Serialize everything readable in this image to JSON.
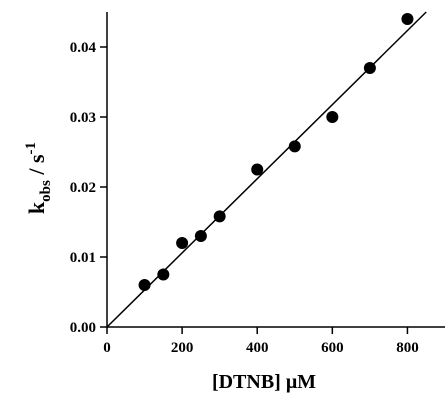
{
  "chart_data": {
    "type": "scatter",
    "xlabel": "[DTNB] μM",
    "ylabel": {
      "main": "k",
      "subscript": "obs",
      "unit": " / s",
      "superscript": "-1"
    },
    "xlim": [
      0,
      900
    ],
    "ylim": [
      0,
      0.045
    ],
    "x_ticks": [
      0,
      200,
      400,
      600,
      800
    ],
    "y_ticks": [
      0.0,
      0.01,
      0.02,
      0.03,
      0.04
    ],
    "x_tick_labels": [
      "0",
      "200",
      "400",
      "600",
      "800"
    ],
    "y_tick_labels": [
      "0.00",
      "0.01",
      "0.02",
      "0.03",
      "0.04"
    ],
    "points": [
      {
        "x": 100,
        "y": 0.006
      },
      {
        "x": 150,
        "y": 0.0075
      },
      {
        "x": 200,
        "y": 0.012
      },
      {
        "x": 250,
        "y": 0.013
      },
      {
        "x": 300,
        "y": 0.0158
      },
      {
        "x": 400,
        "y": 0.0225
      },
      {
        "x": 500,
        "y": 0.0258
      },
      {
        "x": 600,
        "y": 0.03
      },
      {
        "x": 700,
        "y": 0.037
      },
      {
        "x": 800,
        "y": 0.044
      }
    ],
    "fit_line": {
      "x": [
        0,
        850
      ],
      "y": [
        0.0,
        0.045
      ]
    },
    "grid": false,
    "colors": {
      "marker": "#000000",
      "line": "#000000",
      "axis": "#000000"
    }
  }
}
